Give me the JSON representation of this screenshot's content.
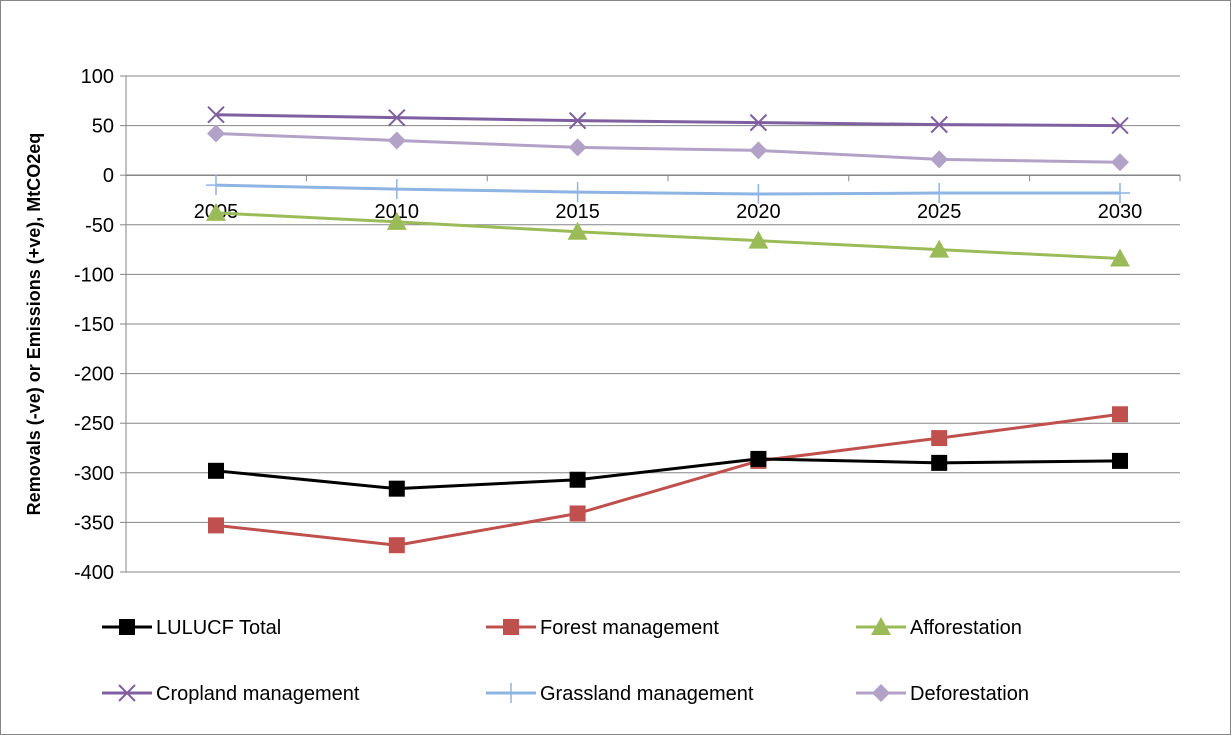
{
  "chart_data": {
    "type": "line",
    "title": "",
    "xlabel": "",
    "ylabel": "Removals (-ve) or Emissions (+ve), MtCO2eq",
    "x": [
      "2005",
      "2010",
      "2015",
      "2020",
      "2025",
      "2030"
    ],
    "ylim": [
      -400,
      100
    ],
    "yticks": [
      100,
      50,
      0,
      -50,
      -100,
      -150,
      -200,
      -250,
      -300,
      -350,
      -400
    ],
    "grid": "horizontal",
    "legend_position": "bottom",
    "series": [
      {
        "name": "LULUCF Total",
        "color": "#000000",
        "marker": "square",
        "values": [
          -298,
          -316,
          -307,
          -286,
          -290,
          -288
        ]
      },
      {
        "name": "Forest management",
        "color": "#C0504D",
        "marker": "square",
        "values": [
          -353,
          -373,
          -341,
          -288,
          -265,
          -241
        ]
      },
      {
        "name": "Afforestation",
        "color": "#9BBB59",
        "marker": "triangle",
        "values": [
          -38,
          -47,
          -57,
          -66,
          -75,
          -84
        ]
      },
      {
        "name": "Cropland management",
        "color": "#7F5FA0",
        "marker": "x",
        "values": [
          61,
          58,
          55,
          53,
          51,
          50
        ]
      },
      {
        "name": "Grassland management",
        "color": "#8EB4E3",
        "marker": "plus",
        "values": [
          -10,
          -14,
          -17,
          -19,
          -18,
          -18
        ]
      },
      {
        "name": "Deforestation",
        "color": "#B3A2C7",
        "marker": "diamond",
        "values": [
          42,
          35,
          28,
          25,
          16,
          13
        ]
      }
    ]
  }
}
